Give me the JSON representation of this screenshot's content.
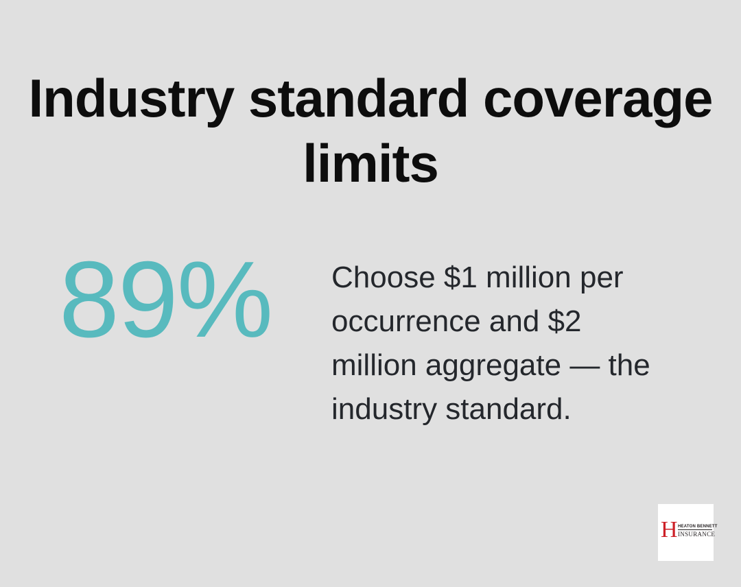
{
  "page": {
    "background_color": "#e0e0e0",
    "title": {
      "lines": [
        "Industry standard coverage",
        "limits"
      ],
      "color": "#0d0d0d"
    },
    "stat": {
      "value": "89%",
      "value_color": "#58babe",
      "description": "Choose $1 million per occurrence and $2 million aggregate — the industry standard.",
      "description_color": "#24272c"
    },
    "logo": {
      "monogram": "H",
      "monogram_color": "#cd2027",
      "name_top": "HEATON BENNETT",
      "name_bottom": "INSURANCE",
      "text_color": "#231f20",
      "background_color": "#ffffff"
    }
  }
}
